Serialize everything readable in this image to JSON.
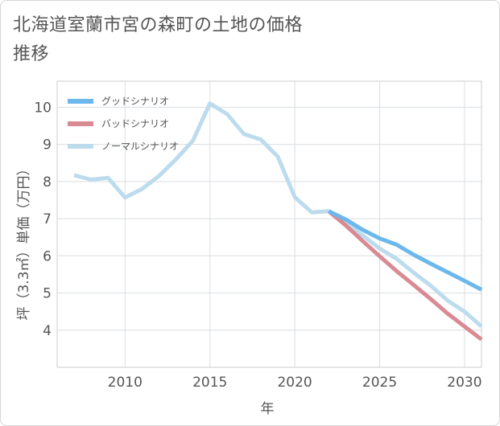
{
  "title": "北海道室蘭市宮の森町の土地の価格推移",
  "chart_data": {
    "type": "line",
    "title": "北海道室蘭市宮の森町の土地の価格推移",
    "xlabel": "年",
    "ylabel": "坪（3.3㎡）単価（万円）",
    "xlim": [
      2006,
      2031
    ],
    "ylim": [
      3,
      10.7
    ],
    "x_ticks": [
      2010,
      2015,
      2020,
      2025,
      2030
    ],
    "y_ticks": [
      4,
      5,
      6,
      7,
      8,
      9,
      10
    ],
    "grid": true,
    "legend_position": "top-left",
    "series": [
      {
        "name": "グッドシナリオ",
        "color": "#6cb8ec",
        "x": [
          2022,
          2023,
          2024,
          2025,
          2026,
          2027,
          2028,
          2029,
          2030,
          2031
        ],
        "y": [
          7.2,
          6.98,
          6.7,
          6.47,
          6.3,
          6.03,
          5.79,
          5.56,
          5.33,
          5.09
        ]
      },
      {
        "name": "バッドシナリオ",
        "color": "#d98a93",
        "x": [
          2022,
          2023,
          2024,
          2025,
          2026,
          2027,
          2028,
          2029,
          2030,
          2031
        ],
        "y": [
          7.2,
          6.82,
          6.4,
          5.99,
          5.59,
          5.22,
          4.84,
          4.45,
          4.1,
          3.75
        ]
      },
      {
        "name": "ノーマルシナリオ",
        "color": "#bcdcee",
        "x": [
          2007,
          2008,
          2009,
          2010,
          2011,
          2012,
          2013,
          2014,
          2015,
          2016,
          2017,
          2018,
          2019,
          2020,
          2021,
          2022,
          2023,
          2024,
          2025,
          2026,
          2027,
          2028,
          2029,
          2030,
          2031
        ],
        "y": [
          8.17,
          8.05,
          8.1,
          7.57,
          7.8,
          8.15,
          8.6,
          9.1,
          10.1,
          9.82,
          9.28,
          9.13,
          8.67,
          7.58,
          7.17,
          7.2,
          6.9,
          6.55,
          6.2,
          5.92,
          5.55,
          5.2,
          4.8,
          4.5,
          4.1
        ]
      }
    ]
  }
}
